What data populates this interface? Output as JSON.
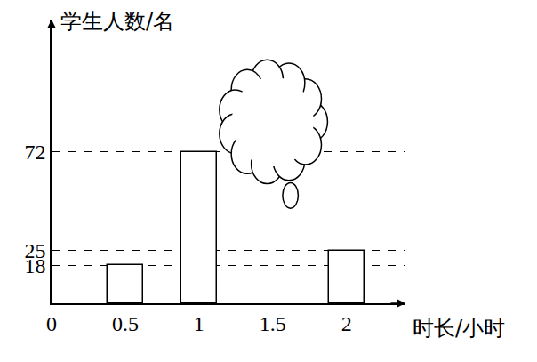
{
  "chart_data": {
    "type": "bar",
    "x_label": "时长/小时",
    "y_label": "学生人数/名",
    "x": [
      0.5,
      1,
      1.5,
      2
    ],
    "values": [
      18,
      72,
      null,
      25
    ],
    "color": "#ffffff",
    "xlim": [
      0,
      2.4
    ],
    "xticks": [
      0,
      0.5,
      1,
      1.5,
      2
    ],
    "ylim": [
      0,
      135
    ],
    "yticks": [
      18,
      25,
      72
    ],
    "grid": true
  }
}
